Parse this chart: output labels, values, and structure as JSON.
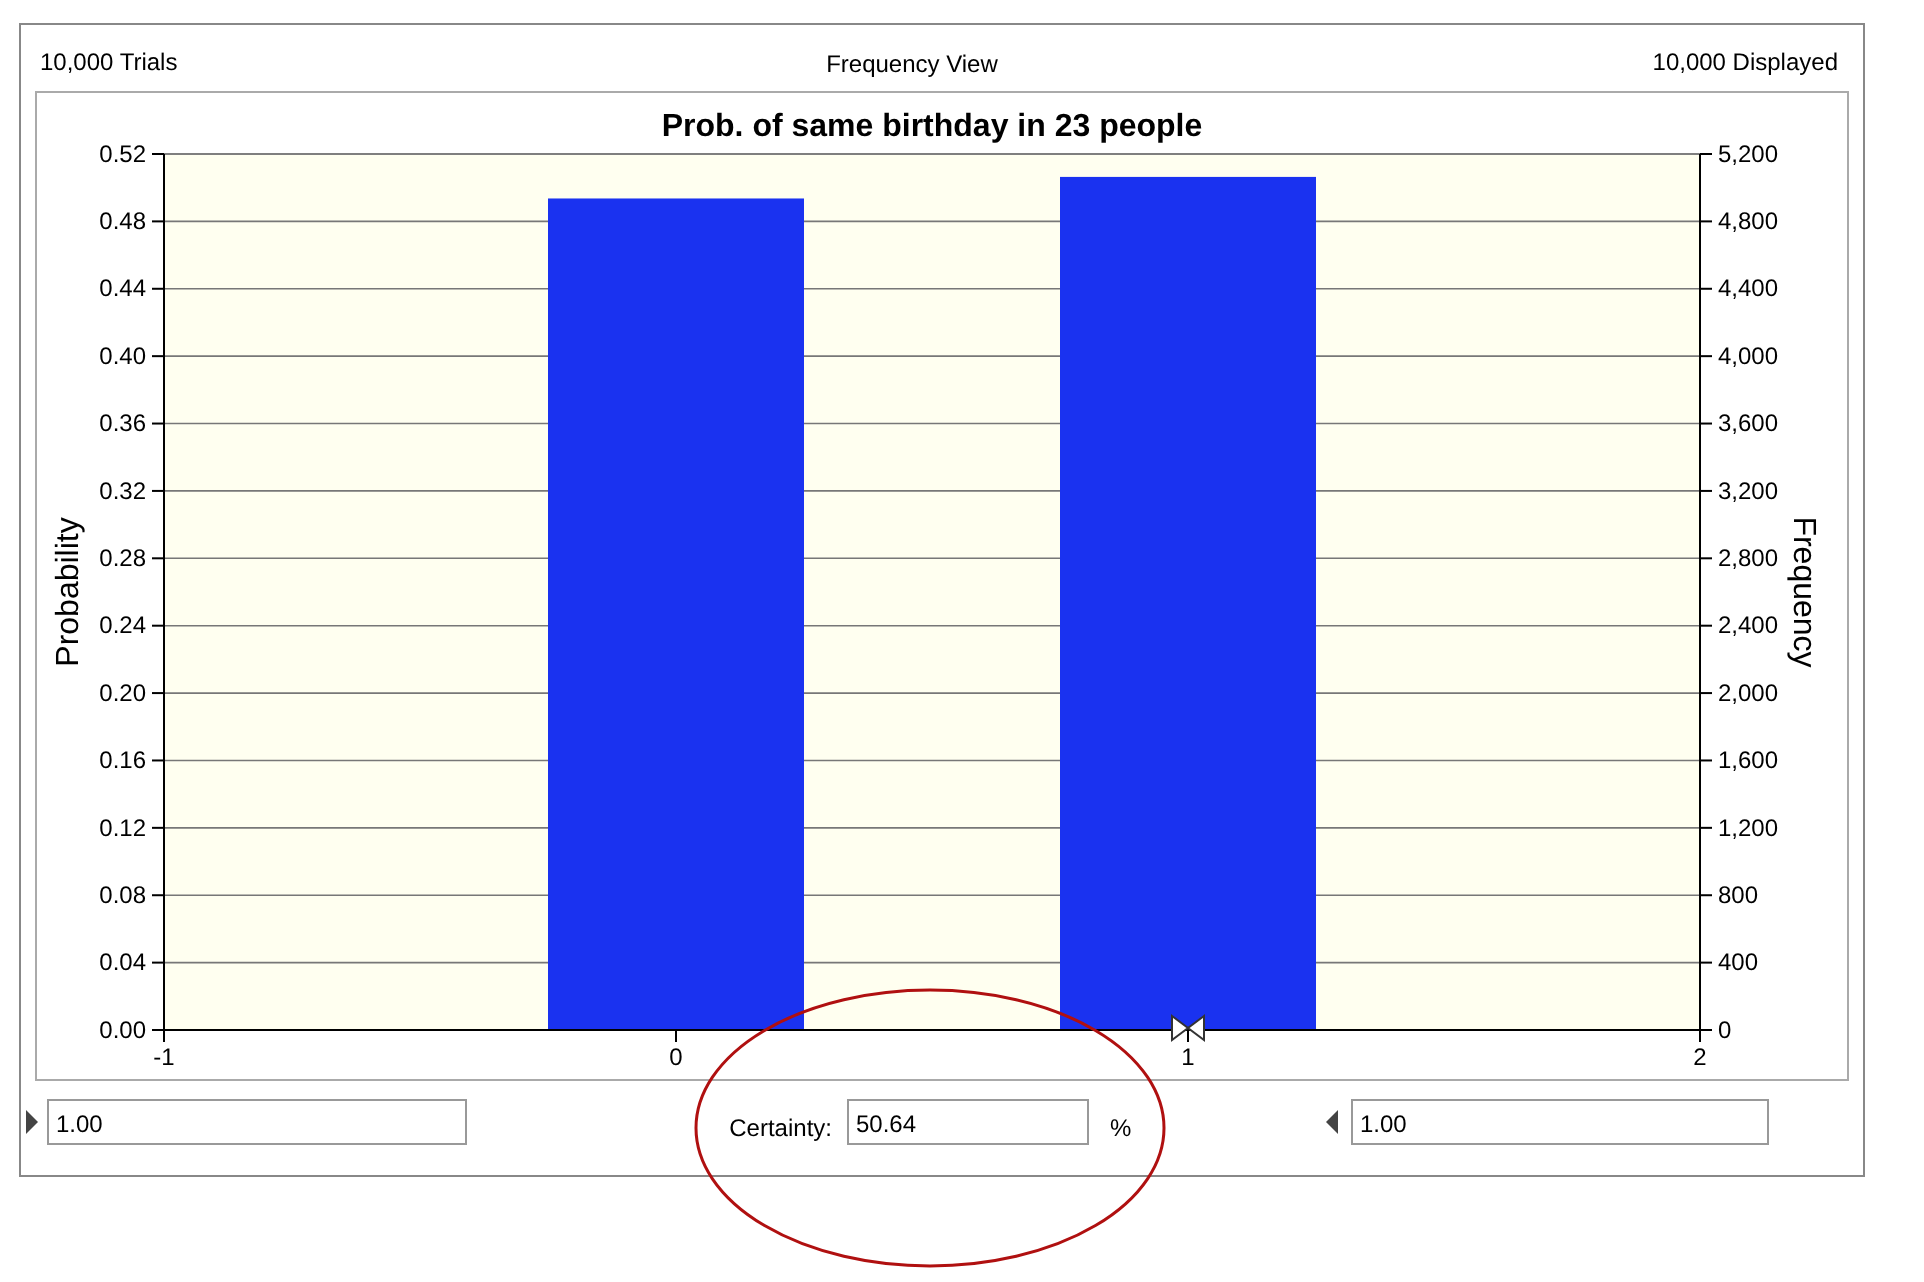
{
  "chart_data": {
    "type": "bar",
    "title": "Prob. of same birthday in 23 people",
    "subtitle": "Frequency View",
    "ylabel": "Probability",
    "y2label": "Frequency",
    "x": [
      0,
      1
    ],
    "series": [
      {
        "color": "#1a32f0",
        "values": [
          0.4936,
          0.5064
        ]
      }
    ],
    "xlim": [
      -1,
      2
    ],
    "xticks": [
      -1,
      0,
      1,
      2
    ],
    "ylim": [
      0,
      0.52
    ],
    "yticks": [
      {
        "value": 0,
        "label": "0.00"
      },
      {
        "value": 0.04,
        "label": "0.04"
      },
      {
        "value": 0.08,
        "label": "0.08"
      },
      {
        "value": 0.12,
        "label": "0.12"
      },
      {
        "value": 0.16,
        "label": "0.16"
      },
      {
        "value": 0.2,
        "label": "0.20"
      },
      {
        "value": 0.24,
        "label": "0.24"
      },
      {
        "value": 0.28,
        "label": "0.28"
      },
      {
        "value": 0.32,
        "label": "0.32"
      },
      {
        "value": 0.36,
        "label": "0.36"
      },
      {
        "value": 0.4,
        "label": "0.40"
      },
      {
        "value": 0.44,
        "label": "0.44"
      },
      {
        "value": 0.48,
        "label": "0.48"
      },
      {
        "value": 0.52,
        "label": "0.52"
      }
    ],
    "y2lim": [
      0,
      5200
    ],
    "y2ticks": [
      0,
      400,
      800,
      {
        "value": 1200,
        "label": "1,200"
      },
      {
        "value": 1600,
        "label": "1,600"
      },
      {
        "value": 2000,
        "label": "2,000"
      },
      {
        "value": 2400,
        "label": "2,400"
      },
      {
        "value": 2800,
        "label": "2,800"
      },
      {
        "value": 3200,
        "label": "3,200"
      },
      {
        "value": 3600,
        "label": "3,600"
      },
      {
        "value": 4000,
        "label": "4,000"
      },
      {
        "value": 4400,
        "label": "4,400"
      },
      {
        "value": 4800,
        "label": "4,800"
      },
      {
        "value": 5200,
        "label": "5,200"
      }
    ],
    "grid": "y",
    "annotations": [
      "10,000 Trials",
      "10,000 Displayed",
      "1.00",
      "Certainty:",
      "50.64",
      "%",
      "1.00"
    ]
  }
}
